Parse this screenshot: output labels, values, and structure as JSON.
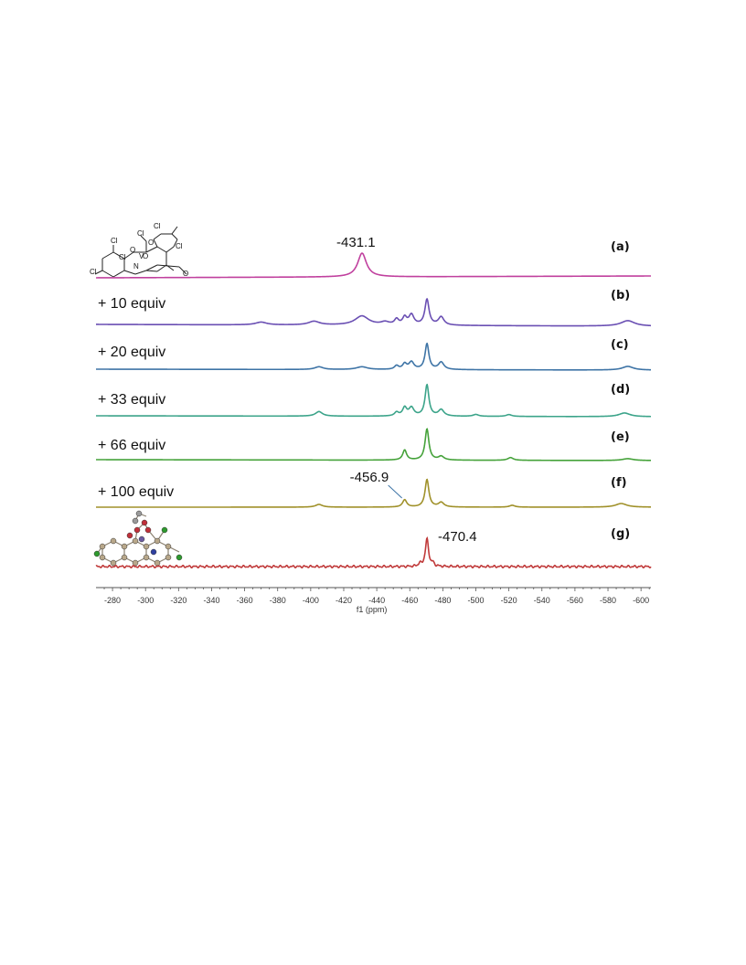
{
  "chart_data": {
    "type": "line",
    "xlabel": "f1 (ppm)",
    "xlim": [
      -270,
      -606
    ],
    "xticks": [
      -280,
      -300,
      -320,
      -340,
      -360,
      -380,
      -400,
      -420,
      -440,
      -460,
      -480,
      -500,
      -520,
      -540,
      -560,
      -580,
      -600
    ],
    "series": [
      {
        "letter": "(a)",
        "label": "",
        "color": "#c0409e",
        "peaks": [
          {
            "x": -431.1,
            "h": 26,
            "w": 3.2
          }
        ]
      },
      {
        "letter": "(b)",
        "label": "+ 10 equiv",
        "color": "#6a4fb3",
        "peaks": [
          {
            "x": -370,
            "h": 3,
            "w": 4
          },
          {
            "x": -402,
            "h": 4,
            "w": 4
          },
          {
            "x": -431,
            "h": 10,
            "w": 5
          },
          {
            "x": -445,
            "h": 3,
            "w": 3
          },
          {
            "x": -452,
            "h": 6,
            "w": 1.5
          },
          {
            "x": -456.9,
            "h": 8,
            "w": 1.5
          },
          {
            "x": -461,
            "h": 11,
            "w": 1.8
          },
          {
            "x": -470.4,
            "h": 28,
            "w": 1.5
          },
          {
            "x": -479,
            "h": 9,
            "w": 2
          },
          {
            "x": -592,
            "h": 6,
            "w": 5
          }
        ]
      },
      {
        "letter": "(c)",
        "label": "+ 20 equiv",
        "color": "#3e74a6",
        "peaks": [
          {
            "x": -405,
            "h": 3,
            "w": 3
          },
          {
            "x": -431,
            "h": 3,
            "w": 4
          },
          {
            "x": -452,
            "h": 4,
            "w": 1.5
          },
          {
            "x": -456.9,
            "h": 6,
            "w": 1.5
          },
          {
            "x": -461,
            "h": 8,
            "w": 1.8
          },
          {
            "x": -470.4,
            "h": 28,
            "w": 1.4
          },
          {
            "x": -479,
            "h": 8,
            "w": 2
          },
          {
            "x": -592,
            "h": 4,
            "w": 4
          }
        ]
      },
      {
        "letter": "(d)",
        "label": "+ 33 equiv",
        "color": "#3ca48a",
        "peaks": [
          {
            "x": -405,
            "h": 5,
            "w": 2.5
          },
          {
            "x": -452,
            "h": 4,
            "w": 1.5
          },
          {
            "x": -456.9,
            "h": 9,
            "w": 1.5
          },
          {
            "x": -461,
            "h": 9,
            "w": 1.8
          },
          {
            "x": -470.4,
            "h": 34,
            "w": 1.4
          },
          {
            "x": -479,
            "h": 7,
            "w": 2
          },
          {
            "x": -500,
            "h": 2,
            "w": 2
          },
          {
            "x": -520,
            "h": 2,
            "w": 2
          },
          {
            "x": -590,
            "h": 4,
            "w": 4
          }
        ]
      },
      {
        "letter": "(e)",
        "label": "+ 66 equiv",
        "color": "#45a23a",
        "peaks": [
          {
            "x": -456.9,
            "h": 11,
            "w": 1.4
          },
          {
            "x": -470.4,
            "h": 34,
            "w": 1.4
          },
          {
            "x": -479,
            "h": 4,
            "w": 2
          },
          {
            "x": -521,
            "h": 3,
            "w": 2
          },
          {
            "x": -592,
            "h": 2,
            "w": 4
          }
        ]
      },
      {
        "letter": "(f)",
        "label": "+ 100 equiv",
        "color": "#a0912a",
        "peaks": [
          {
            "x": -405,
            "h": 3,
            "w": 2.5
          },
          {
            "x": -456.9,
            "h": 8,
            "w": 1.5
          },
          {
            "x": -470.4,
            "h": 30,
            "w": 1.4
          },
          {
            "x": -479,
            "h": 5,
            "w": 2
          },
          {
            "x": -522,
            "h": 2,
            "w": 2
          },
          {
            "x": -588,
            "h": 4,
            "w": 4
          }
        ]
      },
      {
        "letter": "(g)",
        "label": "",
        "color": "#c03a3a",
        "peaks": [
          {
            "x": -466,
            "h": 3,
            "w": 0.8
          },
          {
            "x": -470.4,
            "h": 30,
            "w": 1.2
          },
          {
            "x": -474,
            "h": 3,
            "w": 0.8
          }
        ]
      }
    ],
    "annotations": [
      {
        "text": "-431.1",
        "series": 0,
        "x": -431.1
      },
      {
        "text": "-456.9",
        "series": 5,
        "x": -456.9
      },
      {
        "text": "-470.4",
        "series": 6,
        "x": -470.4
      }
    ],
    "structure_labels": [
      "Cl",
      "Cl",
      "Cl",
      "Cl",
      "Cl",
      "Cl",
      "O",
      "O",
      "O",
      "O",
      "V",
      "N"
    ]
  }
}
